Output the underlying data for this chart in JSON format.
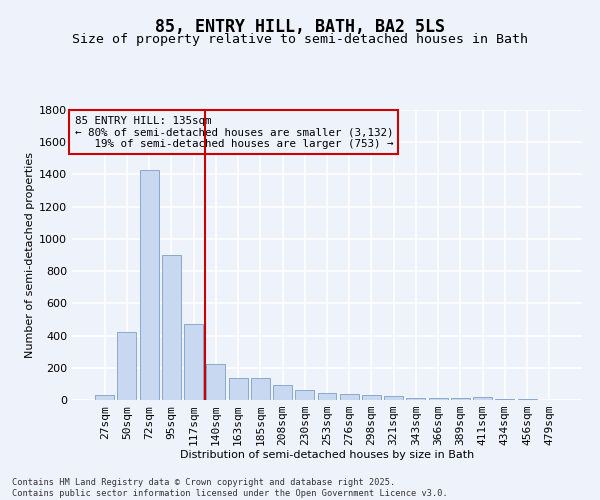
{
  "title": "85, ENTRY HILL, BATH, BA2 5LS",
  "subtitle": "Size of property relative to semi-detached houses in Bath",
  "xlabel": "Distribution of semi-detached houses by size in Bath",
  "ylabel": "Number of semi-detached properties",
  "categories": [
    "27sqm",
    "50sqm",
    "72sqm",
    "95sqm",
    "117sqm",
    "140sqm",
    "163sqm",
    "185sqm",
    "208sqm",
    "230sqm",
    "253sqm",
    "276sqm",
    "298sqm",
    "321sqm",
    "343sqm",
    "366sqm",
    "389sqm",
    "411sqm",
    "434sqm",
    "456sqm",
    "479sqm"
  ],
  "values": [
    30,
    425,
    1430,
    900,
    470,
    225,
    135,
    135,
    95,
    60,
    45,
    35,
    30,
    22,
    15,
    10,
    10,
    18,
    8,
    5,
    3
  ],
  "bar_color": "#c8d8f0",
  "bar_edge_color": "#88aacc",
  "vline_color": "#cc0000",
  "vline_x_index": 5,
  "annotation_text": "85 ENTRY HILL: 135sqm\n← 80% of semi-detached houses are smaller (3,132)\n   19% of semi-detached houses are larger (753) →",
  "annotation_box_color": "#cc0000",
  "ylim": [
    0,
    1800
  ],
  "yticks": [
    0,
    200,
    400,
    600,
    800,
    1000,
    1200,
    1400,
    1600,
    1800
  ],
  "background_color": "#eef2fb",
  "grid_color": "#ffffff",
  "title_fontsize": 12,
  "subtitle_fontsize": 9.5,
  "axis_label_fontsize": 8,
  "tick_fontsize": 8,
  "footnote": "Contains HM Land Registry data © Crown copyright and database right 2025.\nContains public sector information licensed under the Open Government Licence v3.0."
}
